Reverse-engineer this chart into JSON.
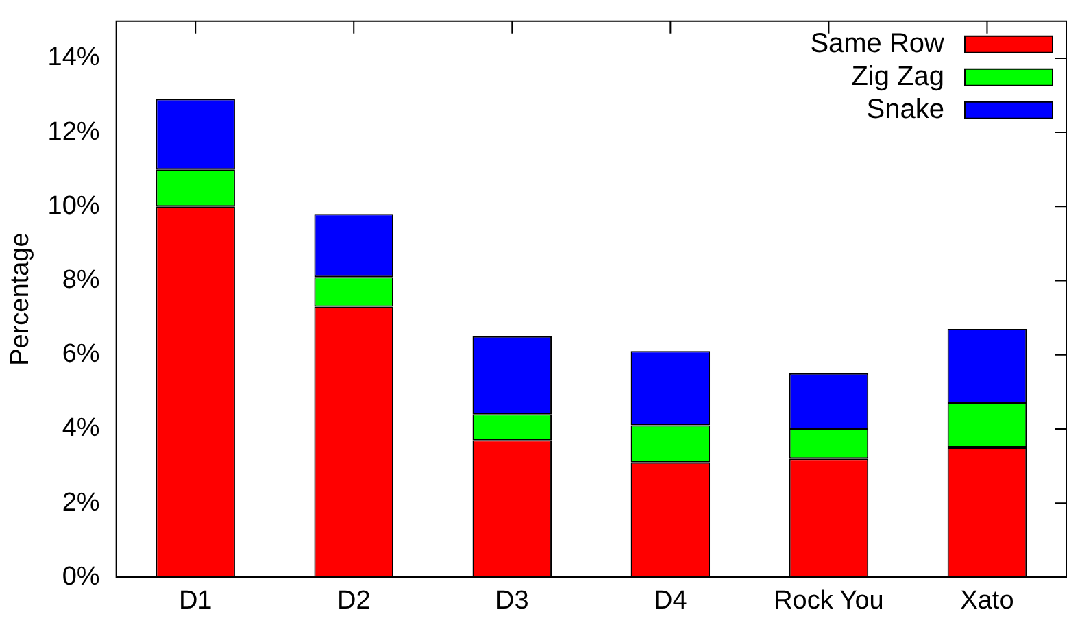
{
  "chart_data": {
    "type": "bar",
    "stacked": true,
    "ylabel": "Percentage",
    "categories": [
      "D1",
      "D2",
      "D3",
      "D4",
      "Rock You",
      "Xato"
    ],
    "series": [
      {
        "name": "Same Row",
        "color": "#ff0000",
        "values": [
          10.0,
          7.3,
          3.7,
          3.1,
          3.2,
          3.5
        ]
      },
      {
        "name": "Zig Zag",
        "color": "#00ff00",
        "values": [
          1.0,
          0.8,
          0.7,
          1.0,
          0.8,
          1.2
        ]
      },
      {
        "name": "Snake",
        "color": "#0000ff",
        "values": [
          1.9,
          1.7,
          2.1,
          2.0,
          1.5,
          2.0
        ]
      }
    ],
    "ylim": [
      0,
      15
    ],
    "yticks": [
      {
        "value": 0,
        "label": "0%"
      },
      {
        "value": 2,
        "label": "2%"
      },
      {
        "value": 4,
        "label": "4%"
      },
      {
        "value": 6,
        "label": "6%"
      },
      {
        "value": 8,
        "label": "8%"
      },
      {
        "value": 10,
        "label": "10%"
      },
      {
        "value": 12,
        "label": "12%"
      },
      {
        "value": 14,
        "label": "14%"
      }
    ],
    "grid": false,
    "legend": "top right"
  }
}
